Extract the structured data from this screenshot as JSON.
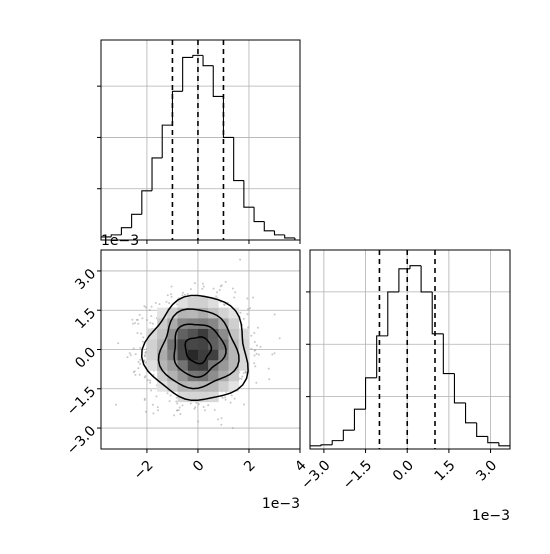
{
  "chart_data": [
    {
      "type": "histogram",
      "panel": "top-left",
      "parameter_index": 0,
      "bin_edges": [
        -3.8,
        -3.4,
        -3.0,
        -2.6,
        -2.2,
        -1.8,
        -1.4,
        -1.0,
        -0.6,
        -0.2,
        0.2,
        0.6,
        1.0,
        1.4,
        1.8,
        2.2,
        2.6,
        3.0,
        3.4,
        3.8
      ],
      "counts": [
        3,
        5,
        12,
        25,
        48,
        80,
        112,
        145,
        178,
        180,
        170,
        140,
        100,
        58,
        32,
        18,
        9,
        5,
        2
      ],
      "quantile_lines": [
        -1.0,
        0.0,
        1.0
      ],
      "xlim": [
        -3.8,
        4.0
      ],
      "ylim": [
        0,
        195
      ],
      "y_ticks": [
        50,
        100,
        150
      ],
      "grid": true
    },
    {
      "type": "histogram",
      "panel": "bottom-right",
      "parameter_index": 1,
      "bin_edges": [
        -3.5,
        -3.1,
        -2.7,
        -2.3,
        -1.9,
        -1.5,
        -1.1,
        -0.7,
        -0.3,
        0.1,
        0.5,
        0.9,
        1.3,
        1.7,
        2.1,
        2.5,
        2.9,
        3.3,
        3.7
      ],
      "counts": [
        3,
        4,
        8,
        18,
        38,
        68,
        108,
        150,
        172,
        175,
        150,
        110,
        72,
        44,
        25,
        12,
        6,
        3
      ],
      "quantile_lines": [
        -1.0,
        0.0,
        1.0
      ],
      "xlim": [
        -3.5,
        3.7
      ],
      "ylim": [
        0,
        190
      ],
      "x_ticks": [
        -3.0,
        -1.5,
        0.0,
        1.5,
        3.0
      ],
      "x_tick_labels": [
        "−3.0",
        "−1.5",
        "0.0",
        "1.5",
        "3.0"
      ],
      "offset_text": "1e−3",
      "y_ticks": [
        50,
        100,
        150
      ],
      "grid": true
    },
    {
      "type": "heatmap",
      "panel": "bottom-left",
      "description_of_marks": "2D histogram with scatter points and 1σ/1.5σ/2σ density contours",
      "xlim": [
        -3.8,
        4.0
      ],
      "ylim": [
        -3.8,
        3.8
      ],
      "x_ticks": [
        -2,
        0,
        2,
        4
      ],
      "x_tick_labels": [
        "−2",
        "0",
        "2",
        "4"
      ],
      "x_offset_text": "1e−3",
      "y_ticks": [
        -3.0,
        -1.5,
        0.0,
        1.5,
        3.0
      ],
      "y_tick_labels": [
        "−3.0",
        "−1.5",
        "0.0",
        "1.5",
        "3.0"
      ],
      "y_offset_text": "1e−3",
      "center": [
        0.0,
        0.0
      ],
      "sigma": [
        1.0,
        1.0
      ],
      "contour_levels_sigma": [
        0.5,
        1.0,
        1.5,
        2.0
      ],
      "n_scatter_points": 1400,
      "grid": true
    }
  ],
  "colors": {
    "line": "#000000",
    "grid": "#b0b0b0",
    "scatter": "#9a9a9a"
  }
}
